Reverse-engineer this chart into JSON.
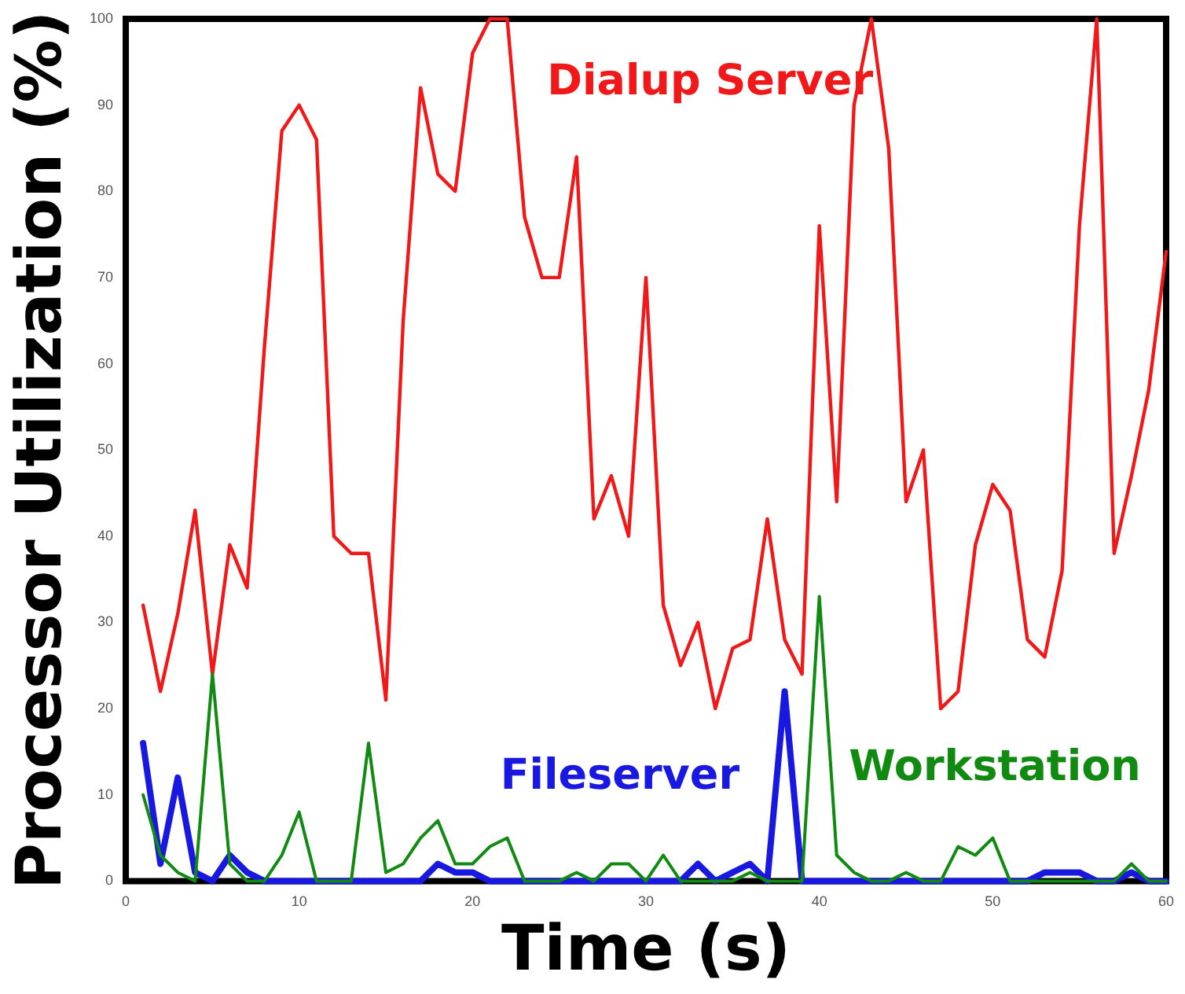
{
  "chart_data": {
    "type": "line",
    "xlabel": "Time (s)",
    "ylabel": "Processor Utilization (%)",
    "x": [
      1,
      2,
      3,
      4,
      5,
      6,
      7,
      8,
      9,
      10,
      11,
      12,
      13,
      14,
      15,
      16,
      17,
      18,
      19,
      20,
      21,
      22,
      23,
      24,
      25,
      26,
      27,
      28,
      29,
      30,
      31,
      32,
      33,
      34,
      35,
      36,
      37,
      38,
      39,
      40,
      41,
      42,
      43,
      44,
      45,
      46,
      47,
      48,
      49,
      50,
      51,
      52,
      53,
      54,
      55,
      56,
      57,
      58,
      59,
      60
    ],
    "series": [
      {
        "name": "Dialup Server",
        "color": "#f01818",
        "values": [
          32,
          22,
          31,
          43,
          24,
          39,
          34,
          62,
          87,
          90,
          86,
          40,
          38,
          38,
          21,
          65,
          92,
          82,
          80,
          96,
          100,
          100,
          77,
          70,
          70,
          84,
          42,
          47,
          40,
          70,
          32,
          25,
          30,
          20,
          27,
          28,
          42,
          28,
          24,
          76,
          44,
          90,
          100,
          85,
          44,
          50,
          20,
          22,
          39,
          46,
          43,
          28,
          26,
          36,
          76,
          100,
          38,
          47,
          57,
          73
        ]
      },
      {
        "name": "Fileserver",
        "color": "#1818e0",
        "values": [
          16,
          2,
          12,
          1,
          0,
          3,
          1,
          0,
          0,
          0,
          0,
          0,
          0,
          0,
          0,
          0,
          0,
          2,
          1,
          1,
          0,
          0,
          0,
          0,
          0,
          0,
          0,
          0,
          0,
          0,
          0,
          0,
          2,
          0,
          1,
          2,
          0,
          22,
          0,
          0,
          0,
          0,
          0,
          0,
          0,
          0,
          0,
          0,
          0,
          0,
          0,
          0,
          1,
          1,
          1,
          0,
          0,
          1,
          0,
          0
        ]
      },
      {
        "name": "Workstation",
        "color": "#108a10",
        "values": [
          10,
          3,
          1,
          0,
          24,
          2,
          0,
          0,
          3,
          8,
          0,
          0,
          0,
          16,
          1,
          2,
          5,
          7,
          2,
          2,
          4,
          5,
          0,
          0,
          0,
          1,
          0,
          2,
          2,
          0,
          3,
          0,
          0,
          0,
          0,
          1,
          0,
          0,
          0,
          33,
          3,
          1,
          0,
          0,
          1,
          0,
          0,
          4,
          3,
          5,
          0,
          0,
          0,
          0,
          0,
          0,
          0,
          2,
          0,
          0
        ]
      }
    ],
    "xlim": [
      0,
      60
    ],
    "xticks": [
      0,
      10,
      20,
      30,
      40,
      50,
      60
    ],
    "ylim": [
      0,
      100
    ],
    "yticks": [
      0,
      10,
      20,
      30,
      40,
      50,
      60,
      70,
      80,
      90,
      100
    ],
    "grid": false,
    "legend": false,
    "marker": "none",
    "line_style": "solid"
  }
}
